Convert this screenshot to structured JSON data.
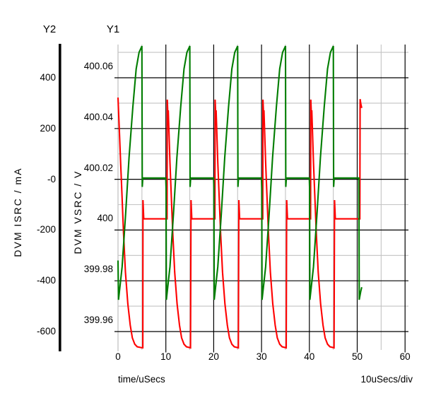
{
  "window": {
    "background": "#ffffff"
  },
  "chart_data": {
    "type": "line",
    "title": "",
    "x_axis": {
      "label": "time/uSecs",
      "per_div_label": "10uSecs/div",
      "min": 0,
      "max": 60,
      "major_step": 10,
      "minor_step": 5,
      "tick_labels": [
        "0",
        "10",
        "20",
        "30",
        "40",
        "50",
        "60"
      ]
    },
    "y1_axis": {
      "header": "Y1",
      "label": "DVM VSRC / V",
      "units": "V",
      "tick_labels": [
        "400.06",
        "400.04",
        "400.02",
        "400",
        "399.98",
        "399.96"
      ],
      "tick_values": [
        400.06,
        400.04,
        400.02,
        400.0,
        399.98,
        399.96
      ],
      "tick_step": 0.02
    },
    "y2_axis": {
      "header": "Y2",
      "label": "DVM ISRC / mA",
      "units": "mA",
      "tick_labels": [
        "400",
        "200",
        "-0",
        "-200",
        "-400",
        "-600"
      ],
      "tick_values": [
        400,
        200,
        0,
        -200,
        -400,
        -600
      ],
      "tick_step": 200
    },
    "grid": {
      "major_color": "#000000",
      "minor_color": "#c3c3c3",
      "background": "#ffffff"
    },
    "series": [
      {
        "name": "DVM VSRC",
        "axis": "y1",
        "color": "#007d00",
        "points": [
          [
            0,
            399.988
          ],
          [
            0.1,
            399.9725
          ],
          [
            0.85,
            399.9855
          ],
          [
            1.6,
            400.0065
          ],
          [
            2.3,
            400.0285
          ],
          [
            3.1,
            400.0485
          ],
          [
            3.8,
            400.0635
          ],
          [
            4.4,
            400.07
          ],
          [
            4.85,
            400.0718
          ],
          [
            5,
            400.0725
          ],
          [
            5.06,
            400.017
          ],
          [
            5.18,
            400.0205
          ],
          [
            9.98,
            400.0205
          ],
          [
            10.05,
            400.0165
          ],
          [
            10.1,
            399.9725
          ],
          [
            10.85,
            399.9855
          ],
          [
            11.6,
            400.0065
          ],
          [
            12.3,
            400.0285
          ],
          [
            13.1,
            400.0485
          ],
          [
            13.8,
            400.0635
          ],
          [
            14.4,
            400.07
          ],
          [
            14.85,
            400.0718
          ],
          [
            15,
            400.0725
          ],
          [
            15.06,
            400.017
          ],
          [
            15.18,
            400.0205
          ],
          [
            19.98,
            400.0205
          ],
          [
            20.05,
            400.0165
          ],
          [
            20.1,
            399.9725
          ],
          [
            20.85,
            399.9855
          ],
          [
            21.6,
            400.0065
          ],
          [
            22.3,
            400.0285
          ],
          [
            23.1,
            400.0485
          ],
          [
            23.8,
            400.0635
          ],
          [
            24.4,
            400.07
          ],
          [
            24.85,
            400.0718
          ],
          [
            25,
            400.0725
          ],
          [
            25.06,
            400.017
          ],
          [
            25.18,
            400.0205
          ],
          [
            29.98,
            400.0205
          ],
          [
            30.05,
            400.0165
          ],
          [
            30.1,
            399.9725
          ],
          [
            30.85,
            399.9855
          ],
          [
            31.6,
            400.0065
          ],
          [
            32.3,
            400.0285
          ],
          [
            33.1,
            400.0485
          ],
          [
            33.8,
            400.0635
          ],
          [
            34.4,
            400.07
          ],
          [
            34.85,
            400.0718
          ],
          [
            35,
            400.0725
          ],
          [
            35.06,
            400.017
          ],
          [
            35.18,
            400.0205
          ],
          [
            39.98,
            400.0205
          ],
          [
            40.05,
            400.0165
          ],
          [
            40.1,
            399.9725
          ],
          [
            40.85,
            399.9855
          ],
          [
            41.6,
            400.0065
          ],
          [
            42.3,
            400.0285
          ],
          [
            43.1,
            400.0485
          ],
          [
            43.8,
            400.0635
          ],
          [
            44.4,
            400.07
          ],
          [
            44.85,
            400.0718
          ],
          [
            45,
            400.0725
          ],
          [
            45.06,
            400.017
          ],
          [
            45.18,
            400.0205
          ],
          [
            50.35,
            400.0205
          ],
          [
            50.42,
            399.9725
          ],
          [
            50.75,
            399.976
          ],
          [
            50.95,
            399.9775
          ]
        ]
      },
      {
        "name": "DVM ISRC",
        "axis": "y2",
        "color": "#ff0000",
        "points": [
          [
            0,
            322
          ],
          [
            0.25,
            205
          ],
          [
            0.55,
            66
          ],
          [
            0.85,
            -74
          ],
          [
            1.15,
            -213
          ],
          [
            1.55,
            -366
          ],
          [
            2.05,
            -491
          ],
          [
            2.55,
            -575
          ],
          [
            3,
            -625
          ],
          [
            3.5,
            -650
          ],
          [
            4,
            -660
          ],
          [
            5.05,
            -664
          ],
          [
            5.18,
            -664
          ],
          [
            5.22,
            -82
          ],
          [
            5.38,
            -156
          ],
          [
            10.25,
            -156
          ],
          [
            10.3,
            314
          ],
          [
            10.42,
            258
          ],
          [
            10.5,
            272
          ],
          [
            10.85,
            66
          ],
          [
            11.15,
            -74
          ],
          [
            11.45,
            -213
          ],
          [
            11.85,
            -366
          ],
          [
            12.35,
            -491
          ],
          [
            12.85,
            -575
          ],
          [
            13.3,
            -625
          ],
          [
            13.8,
            -650
          ],
          [
            14.3,
            -660
          ],
          [
            15.15,
            -664
          ],
          [
            15.26,
            -82
          ],
          [
            15.42,
            -156
          ],
          [
            20.25,
            -156
          ],
          [
            20.3,
            314
          ],
          [
            20.42,
            258
          ],
          [
            20.5,
            272
          ],
          [
            20.85,
            66
          ],
          [
            21.15,
            -74
          ],
          [
            21.45,
            -213
          ],
          [
            21.85,
            -366
          ],
          [
            22.35,
            -491
          ],
          [
            22.85,
            -575
          ],
          [
            23.3,
            -625
          ],
          [
            23.8,
            -650
          ],
          [
            24.3,
            -660
          ],
          [
            25.15,
            -664
          ],
          [
            25.26,
            -82
          ],
          [
            25.42,
            -156
          ],
          [
            30.25,
            -156
          ],
          [
            30.3,
            314
          ],
          [
            30.42,
            258
          ],
          [
            30.5,
            272
          ],
          [
            30.85,
            66
          ],
          [
            31.15,
            -74
          ],
          [
            31.45,
            -213
          ],
          [
            31.85,
            -366
          ],
          [
            32.35,
            -491
          ],
          [
            32.85,
            -575
          ],
          [
            33.3,
            -625
          ],
          [
            33.8,
            -650
          ],
          [
            34.3,
            -660
          ],
          [
            35.15,
            -664
          ],
          [
            35.26,
            -82
          ],
          [
            35.42,
            -156
          ],
          [
            40.25,
            -156
          ],
          [
            40.3,
            314
          ],
          [
            40.42,
            258
          ],
          [
            40.5,
            272
          ],
          [
            40.85,
            66
          ],
          [
            41.15,
            -74
          ],
          [
            41.45,
            -213
          ],
          [
            41.85,
            -366
          ],
          [
            42.35,
            -491
          ],
          [
            42.85,
            -575
          ],
          [
            43.3,
            -625
          ],
          [
            43.8,
            -650
          ],
          [
            44.3,
            -660
          ],
          [
            45.15,
            -664
          ],
          [
            45.26,
            -82
          ],
          [
            45.42,
            -156
          ],
          [
            50.55,
            -156
          ],
          [
            50.6,
            316
          ],
          [
            50.75,
            297
          ],
          [
            50.95,
            281
          ]
        ]
      }
    ]
  }
}
